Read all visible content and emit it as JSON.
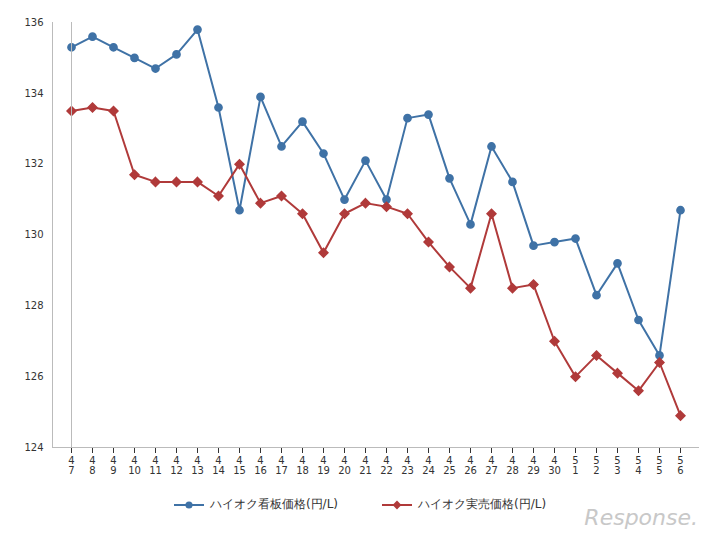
{
  "chart_data": {
    "type": "line",
    "categories": [
      "4\n7",
      "4\n8",
      "4\n9",
      "4\n10",
      "4\n11",
      "4\n12",
      "4\n13",
      "4\n14",
      "4\n15",
      "4\n16",
      "4\n17",
      "4\n18",
      "4\n19",
      "4\n20",
      "4\n21",
      "4\n22",
      "4\n23",
      "4\n24",
      "4\n25",
      "4\n26",
      "4\n27",
      "4\n28",
      "4\n29",
      "4\n30",
      "5\n1",
      "5\n2",
      "5\n3",
      "5\n4",
      "5\n5",
      "5\n6"
    ],
    "series": [
      {
        "name": "ハイオク看板価格(円/L)",
        "color": "#3f72a6",
        "marker": "circle",
        "values": [
          135.3,
          135.6,
          135.3,
          135.0,
          134.7,
          135.1,
          135.8,
          133.6,
          130.7,
          133.9,
          132.5,
          133.2,
          132.3,
          131.0,
          132.1,
          131.0,
          133.3,
          133.4,
          131.6,
          130.3,
          132.5,
          131.5,
          129.7,
          129.8,
          129.9,
          128.3,
          129.2,
          127.6,
          126.6,
          130.7
        ]
      },
      {
        "name": "ハイオク実売価格(円/L)",
        "color": "#b03a3a",
        "marker": "diamond",
        "values": [
          133.5,
          133.6,
          133.5,
          131.7,
          131.5,
          131.5,
          131.5,
          131.1,
          132.0,
          130.9,
          131.1,
          130.6,
          129.5,
          130.6,
          130.9,
          130.8,
          130.6,
          129.8,
          129.1,
          128.5,
          130.6,
          128.5,
          128.6,
          127.0,
          126.0,
          126.6,
          126.1,
          125.6,
          126.4,
          124.9
        ]
      }
    ],
    "ylim": [
      124,
      136
    ],
    "yticks": [
      124,
      126,
      128,
      130,
      132,
      134,
      136
    ],
    "grid": false,
    "legend": "bottom",
    "annotations": [
      "Response."
    ]
  }
}
